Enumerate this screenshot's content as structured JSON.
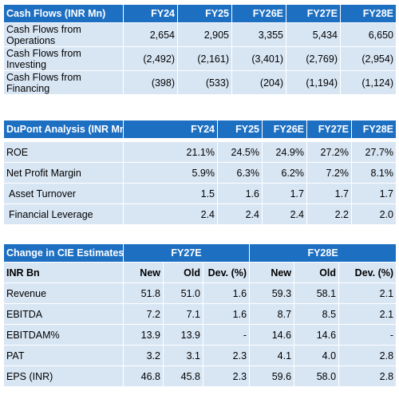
{
  "cash_flows": {
    "title": "Cash Flows (INR Mn)",
    "years": [
      "FY24",
      "FY25",
      "FY26E",
      "FY27E",
      "FY28E"
    ],
    "rows": [
      {
        "label": "Cash Flows from Operations",
        "values": [
          "2,654",
          "2,905",
          "3,355",
          "5,434",
          "6,650"
        ]
      },
      {
        "label": "Cash Flows from Investing",
        "values": [
          "(2,492)",
          "(2,161)",
          "(3,401)",
          "(2,769)",
          "(2,954)"
        ]
      },
      {
        "label": "Cash Flows from Financing",
        "values": [
          "(398)",
          "(533)",
          "(204)",
          "(1,194)",
          "(1,124)"
        ]
      }
    ]
  },
  "dupont": {
    "title": "DuPont Analysis (INR Mn)",
    "years": [
      "FY24",
      "FY25",
      "FY26E",
      "FY27E",
      "FY28E"
    ],
    "rows": [
      {
        "label": "ROE",
        "values": [
          "21.1%",
          "24.5%",
          "24.9%",
          "27.2%",
          "27.7%"
        ]
      },
      {
        "label": "Net Profit Margin",
        "values": [
          "5.9%",
          "6.3%",
          "6.2%",
          "7.2%",
          "8.1%"
        ]
      },
      {
        "label": "Asset Turnover",
        "values": [
          "1.5",
          "1.6",
          "1.7",
          "1.7",
          "1.7"
        ]
      },
      {
        "label": "Financial Leverage",
        "values": [
          "2.4",
          "2.4",
          "2.4",
          "2.2",
          "2.0"
        ]
      }
    ]
  },
  "estimates": {
    "title": "Change in CIE Estimates",
    "group1": "FY27E",
    "group2": "FY28E",
    "unit_label": "INR Bn",
    "subheaders": [
      "New",
      "Old",
      "Dev. (%)",
      "New",
      "Old",
      "Dev. (%)"
    ],
    "rows": [
      {
        "label": "Revenue",
        "values": [
          "51.8",
          "51.0",
          "1.6",
          "59.3",
          "58.1",
          "2.1"
        ]
      },
      {
        "label": "EBITDA",
        "values": [
          "7.2",
          "7.1",
          "1.6",
          "8.7",
          "8.5",
          "2.1"
        ]
      },
      {
        "label": "EBITDAM%",
        "values": [
          "13.9",
          "13.9",
          "-",
          "14.6",
          "14.6",
          "-"
        ]
      },
      {
        "label": "PAT",
        "values": [
          "3.2",
          "3.1",
          "2.3",
          "4.1",
          "4.0",
          "2.8"
        ]
      },
      {
        "label": "EPS (INR)",
        "values": [
          "46.8",
          "45.8",
          "2.3",
          "59.6",
          "58.0",
          "2.8"
        ]
      }
    ]
  },
  "colors": {
    "header_bg": "#1d6fc2",
    "row_bg": "#d8e6f4"
  }
}
